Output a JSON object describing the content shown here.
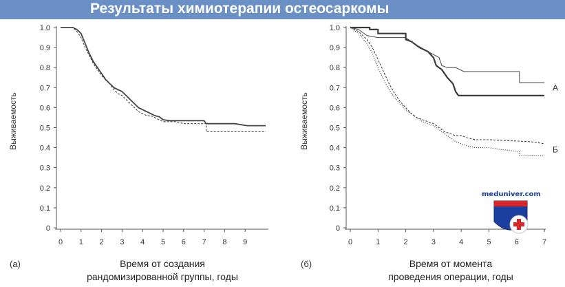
{
  "header": {
    "title": "Результаты химиотерапии остеосаркомы"
  },
  "logo": {
    "text": "meduniver.com",
    "colors": {
      "blue": "#1a3f9e",
      "red": "#d9262b"
    }
  },
  "colors": {
    "title_bg": "#6b90c6",
    "axis": "#555555",
    "line": "#444444"
  },
  "chart_data": [
    {
      "type": "line",
      "panel_label": "(а)",
      "xlabel_lines": [
        "Время от создания",
        "рандомизированной группы, годы"
      ],
      "ylabel": "Выживаемость",
      "xlim": [
        0,
        10
      ],
      "ylim": [
        0,
        1
      ],
      "x_ticks": [
        "0",
        "1",
        "2",
        "3",
        "4",
        "5",
        "6",
        "7",
        "8",
        "9"
      ],
      "y_ticks": [
        "0",
        "0.1",
        "0.2",
        "0.3",
        "0.4",
        "0.5",
        "0.6",
        "0.7",
        "0.8",
        "0.9",
        "1.0"
      ],
      "series": [
        {
          "style": "solid",
          "points": [
            [
              0,
              1.0
            ],
            [
              0.6,
              1.0
            ],
            [
              0.8,
              0.99
            ],
            [
              1.0,
              0.97
            ],
            [
              1.2,
              0.92
            ],
            [
              1.4,
              0.87
            ],
            [
              1.6,
              0.83
            ],
            [
              1.8,
              0.8
            ],
            [
              2.0,
              0.77
            ],
            [
              2.2,
              0.74
            ],
            [
              2.4,
              0.72
            ],
            [
              2.6,
              0.7
            ],
            [
              2.8,
              0.69
            ],
            [
              3.0,
              0.68
            ],
            [
              3.2,
              0.66
            ],
            [
              3.4,
              0.64
            ],
            [
              3.6,
              0.62
            ],
            [
              3.8,
              0.6
            ],
            [
              4.0,
              0.59
            ],
            [
              4.2,
              0.58
            ],
            [
              4.4,
              0.57
            ],
            [
              4.6,
              0.56
            ],
            [
              4.8,
              0.555
            ],
            [
              5.0,
              0.54
            ],
            [
              5.3,
              0.535
            ],
            [
              6.0,
              0.535
            ],
            [
              7.0,
              0.535
            ],
            [
              7.1,
              0.52
            ],
            [
              8.5,
              0.52
            ],
            [
              9.1,
              0.51
            ],
            [
              10.0,
              0.51
            ]
          ]
        },
        {
          "style": "dashed",
          "points": [
            [
              0,
              1.0
            ],
            [
              0.6,
              1.0
            ],
            [
              0.8,
              0.98
            ],
            [
              1.0,
              0.95
            ],
            [
              1.2,
              0.9
            ],
            [
              1.4,
              0.86
            ],
            [
              1.6,
              0.82
            ],
            [
              1.8,
              0.79
            ],
            [
              2.0,
              0.76
            ],
            [
              2.2,
              0.74
            ],
            [
              2.4,
              0.72
            ],
            [
              2.6,
              0.69
            ],
            [
              2.8,
              0.67
            ],
            [
              3.0,
              0.66
            ],
            [
              3.2,
              0.64
            ],
            [
              3.4,
              0.62
            ],
            [
              3.6,
              0.6
            ],
            [
              3.8,
              0.58
            ],
            [
              4.0,
              0.57
            ],
            [
              4.2,
              0.56
            ],
            [
              4.4,
              0.56
            ],
            [
              4.6,
              0.55
            ],
            [
              4.8,
              0.54
            ],
            [
              5.0,
              0.53
            ],
            [
              5.6,
              0.53
            ],
            [
              6.0,
              0.52
            ],
            [
              7.1,
              0.52
            ],
            [
              7.1,
              0.48
            ],
            [
              10.0,
              0.48
            ]
          ]
        }
      ]
    },
    {
      "type": "line",
      "panel_label": "(б)",
      "xlabel_lines": [
        "Время от момента",
        "проведения операции, годы"
      ],
      "ylabel": "Выживаемость",
      "xlim": [
        0,
        7
      ],
      "ylim": [
        0,
        1
      ],
      "x_ticks": [
        "0",
        "1",
        "2",
        "3",
        "4",
        "5",
        "6",
        "7"
      ],
      "y_ticks": [
        "0",
        "0.1",
        "0.2",
        "0.3",
        "0.4",
        "0.5",
        "0.6",
        "0.7",
        "0.8",
        "0.9",
        "1.0"
      ],
      "annotations": [
        "А",
        "Б"
      ],
      "series": [
        {
          "style": "solid-thick",
          "points": [
            [
              0,
              1.0
            ],
            [
              0.7,
              1.0
            ],
            [
              0.7,
              0.99
            ],
            [
              1.0,
              0.99
            ],
            [
              1.0,
              0.97
            ],
            [
              2.0,
              0.97
            ],
            [
              2.0,
              0.94
            ],
            [
              2.2,
              0.93
            ],
            [
              2.5,
              0.9
            ],
            [
              2.8,
              0.88
            ],
            [
              3.0,
              0.85
            ],
            [
              3.1,
              0.81
            ],
            [
              3.3,
              0.79
            ],
            [
              3.5,
              0.75
            ],
            [
              3.7,
              0.72
            ],
            [
              3.8,
              0.68
            ],
            [
              3.9,
              0.66
            ],
            [
              7.0,
              0.66
            ]
          ]
        },
        {
          "style": "solid-thin",
          "points": [
            [
              0,
              1.0
            ],
            [
              0.3,
              0.99
            ],
            [
              0.6,
              0.96
            ],
            [
              1.0,
              0.95
            ],
            [
              1.4,
              0.95
            ],
            [
              2.0,
              0.95
            ],
            [
              2.3,
              0.92
            ],
            [
              2.8,
              0.88
            ],
            [
              3.2,
              0.85
            ],
            [
              3.3,
              0.81
            ],
            [
              3.5,
              0.8
            ],
            [
              3.8,
              0.8
            ],
            [
              4.1,
              0.78
            ],
            [
              5.0,
              0.78
            ],
            [
              6.1,
              0.78
            ],
            [
              6.1,
              0.725
            ],
            [
              6.3,
              0.725
            ],
            [
              7.0,
              0.725
            ]
          ]
        },
        {
          "style": "dashed",
          "points": [
            [
              0,
              1.0
            ],
            [
              0.3,
              0.98
            ],
            [
              0.6,
              0.94
            ],
            [
              0.8,
              0.9
            ],
            [
              1.0,
              0.84
            ],
            [
              1.2,
              0.78
            ],
            [
              1.4,
              0.72
            ],
            [
              1.6,
              0.67
            ],
            [
              1.8,
              0.63
            ],
            [
              2.0,
              0.6
            ],
            [
              2.2,
              0.57
            ],
            [
              2.4,
              0.55
            ],
            [
              2.6,
              0.54
            ],
            [
              2.8,
              0.53
            ],
            [
              3.0,
              0.52
            ],
            [
              3.2,
              0.5
            ],
            [
              3.4,
              0.48
            ],
            [
              3.6,
              0.47
            ],
            [
              3.8,
              0.46
            ],
            [
              4.0,
              0.46
            ],
            [
              4.2,
              0.45
            ],
            [
              4.5,
              0.44
            ],
            [
              5.0,
              0.44
            ],
            [
              6.5,
              0.43
            ],
            [
              7.0,
              0.42
            ]
          ]
        },
        {
          "style": "dotted",
          "points": [
            [
              0,
              1.0
            ],
            [
              0.3,
              0.97
            ],
            [
              0.6,
              0.92
            ],
            [
              0.8,
              0.87
            ],
            [
              1.0,
              0.8
            ],
            [
              1.2,
              0.74
            ],
            [
              1.4,
              0.69
            ],
            [
              1.6,
              0.65
            ],
            [
              1.8,
              0.62
            ],
            [
              2.0,
              0.59
            ],
            [
              2.2,
              0.57
            ],
            [
              2.4,
              0.55
            ],
            [
              2.6,
              0.53
            ],
            [
              2.8,
              0.52
            ],
            [
              3.0,
              0.51
            ],
            [
              3.2,
              0.49
            ],
            [
              3.4,
              0.47
            ],
            [
              3.6,
              0.45
            ],
            [
              3.8,
              0.43
            ],
            [
              4.0,
              0.42
            ],
            [
              4.2,
              0.41
            ],
            [
              4.5,
              0.4
            ],
            [
              5.0,
              0.4
            ],
            [
              5.5,
              0.39
            ],
            [
              6.1,
              0.38
            ],
            [
              6.1,
              0.36
            ],
            [
              7.0,
              0.36
            ]
          ]
        }
      ]
    }
  ]
}
